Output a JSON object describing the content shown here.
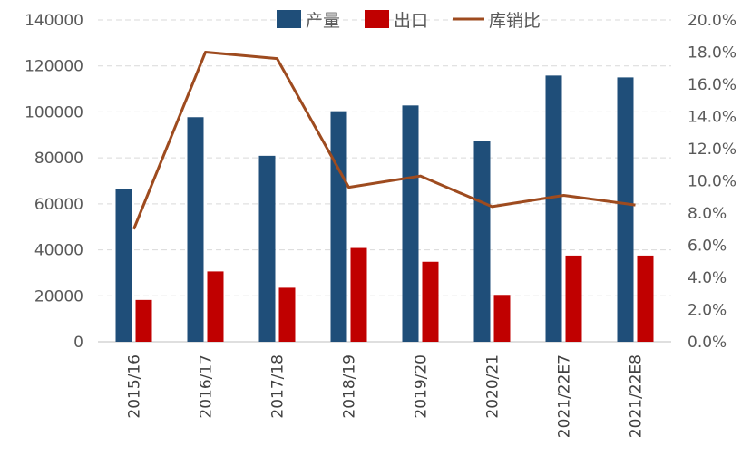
{
  "chart_data": {
    "type": "bar",
    "categories": [
      "2015/16",
      "2016/17",
      "2017/18",
      "2018/19",
      "2019/20",
      "2020/21",
      "2021/22E7",
      "2021/22E8"
    ],
    "series": [
      {
        "name": "产量",
        "type": "bar",
        "axis": "left",
        "color": "#1F4E79",
        "values": [
          66600,
          97700,
          80900,
          100300,
          102800,
          87200,
          115800,
          115000
        ]
      },
      {
        "name": "出口",
        "type": "bar",
        "axis": "left",
        "color": "#C00000",
        "values": [
          18200,
          30600,
          23500,
          40800,
          34800,
          20400,
          37500,
          37500
        ]
      },
      {
        "name": "库销比",
        "type": "line",
        "axis": "right",
        "color": "#9E4B1F",
        "values": [
          7.0,
          18.0,
          17.6,
          9.6,
          10.3,
          8.4,
          9.1,
          8.5
        ]
      }
    ],
    "left_axis": {
      "ylim": [
        0,
        140000
      ],
      "ticks": [
        "0",
        "20000",
        "40000",
        "60000",
        "80000",
        "100000",
        "120000",
        "140000"
      ]
    },
    "right_axis": {
      "ylim": [
        0,
        20
      ],
      "ticks": [
        "0.0%",
        "2.0%",
        "4.0%",
        "6.0%",
        "8.0%",
        "10.0%",
        "12.0%",
        "14.0%",
        "16.0%",
        "18.0%",
        "20.0%"
      ]
    },
    "grid": true,
    "legend_position": "top-center",
    "title": "",
    "xlabel": "",
    "ylabel": ""
  }
}
